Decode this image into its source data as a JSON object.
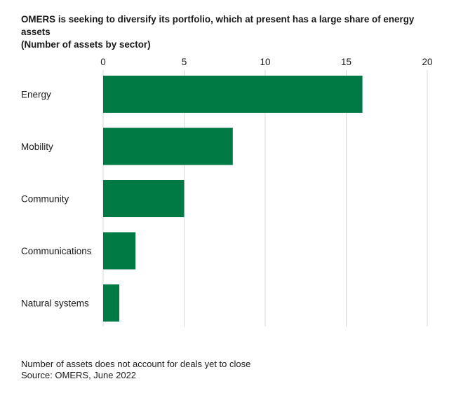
{
  "chart_data": {
    "type": "bar",
    "orientation": "horizontal",
    "title": "OMERS is seeking to diversify its portfolio, which at present has a large share of energy assets",
    "subtitle": "(Number of assets by sector)",
    "categories": [
      "Energy",
      "Mobility",
      "Community",
      "Communications",
      "Natural systems"
    ],
    "values": [
      16,
      8,
      5,
      2,
      1
    ],
    "xlim": [
      0,
      20
    ],
    "xticks": [
      0,
      5,
      10,
      15,
      20
    ],
    "xtick_labels": [
      "0",
      "5",
      "10",
      "15",
      "20"
    ],
    "xlabel": "",
    "ylabel": "",
    "grid": true,
    "axis_position": "top",
    "bar_color": "#007a45",
    "grid_color": "#d9d9d9",
    "notes": [
      "Number of assets does not account for deals yet to close",
      "Source: OMERS, June 2022"
    ]
  }
}
